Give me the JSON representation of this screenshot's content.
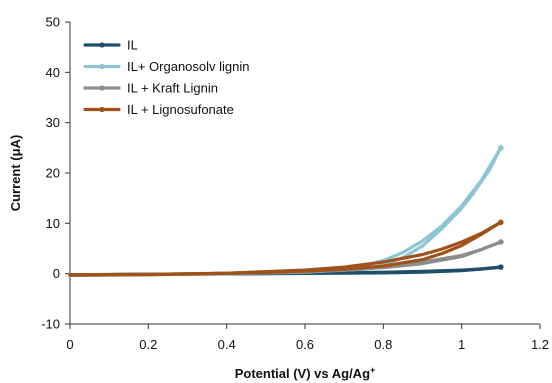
{
  "chart_data": {
    "type": "line",
    "xlabel": "Potential (V) vs Ag/Ag",
    "xlabel_sup": "+",
    "ylabel": "Current (μA)",
    "xlim": [
      0,
      1.2
    ],
    "ylim": [
      -10,
      50
    ],
    "xticks": [
      0,
      0.2,
      0.4,
      0.6,
      0.8,
      1,
      1.2
    ],
    "xtick_labels": [
      "0",
      "0.2",
      "0.4",
      "0.6",
      "0.8",
      "1",
      "1.2"
    ],
    "yticks": [
      -10,
      0,
      10,
      20,
      30,
      40,
      50
    ],
    "ytick_labels": [
      "-10",
      "0",
      "10",
      "20",
      "30",
      "40",
      "50"
    ],
    "grid": false,
    "legend_position": "top-left",
    "series": [
      {
        "name": "IL",
        "color": "#1f4e6b",
        "forward": [
          [
            0,
            -0.2
          ],
          [
            0.2,
            -0.1
          ],
          [
            0.4,
            0.0
          ],
          [
            0.6,
            0.1
          ],
          [
            0.8,
            0.3
          ],
          [
            0.9,
            0.45
          ],
          [
            1.0,
            0.7
          ],
          [
            1.05,
            0.9
          ],
          [
            1.1,
            1.3
          ]
        ],
        "reverse": [
          [
            1.1,
            1.3
          ],
          [
            1.0,
            0.6
          ],
          [
            0.9,
            0.3
          ],
          [
            0.8,
            0.15
          ],
          [
            0.6,
            0.05
          ],
          [
            0.4,
            -0.05
          ],
          [
            0.2,
            -0.15
          ],
          [
            0,
            -0.25
          ]
        ]
      },
      {
        "name": "IL+ Organosolv lignin",
        "color": "#8ec5d3",
        "forward": [
          [
            0,
            -0.3
          ],
          [
            0.2,
            -0.2
          ],
          [
            0.4,
            0.1
          ],
          [
            0.6,
            0.6
          ],
          [
            0.7,
            1.1
          ],
          [
            0.75,
            1.6
          ],
          [
            0.8,
            2.6
          ],
          [
            0.85,
            4.2
          ],
          [
            0.9,
            6.5
          ],
          [
            0.95,
            9.5
          ],
          [
            1.0,
            13.5
          ],
          [
            1.05,
            18.5
          ],
          [
            1.1,
            25.0
          ]
        ],
        "reverse": [
          [
            1.1,
            25.0
          ],
          [
            1.07,
            20.5
          ],
          [
            1.03,
            16.0
          ],
          [
            1.0,
            13.0
          ],
          [
            0.95,
            9.0
          ],
          [
            0.9,
            5.5
          ],
          [
            0.85,
            3.2
          ],
          [
            0.8,
            1.7
          ],
          [
            0.75,
            0.9
          ],
          [
            0.6,
            0.3
          ],
          [
            0.4,
            0.0
          ],
          [
            0.2,
            -0.2
          ],
          [
            0,
            -0.35
          ]
        ]
      },
      {
        "name": "IL + Kraft Lignin",
        "color": "#8c8c8c",
        "forward": [
          [
            0,
            -0.25
          ],
          [
            0.2,
            -0.15
          ],
          [
            0.4,
            0.05
          ],
          [
            0.6,
            0.5
          ],
          [
            0.7,
            0.9
          ],
          [
            0.8,
            1.5
          ],
          [
            0.9,
            2.3
          ],
          [
            1.0,
            3.6
          ],
          [
            1.05,
            4.8
          ],
          [
            1.1,
            6.3
          ]
        ],
        "reverse": [
          [
            1.1,
            6.3
          ],
          [
            1.05,
            4.8
          ],
          [
            1.0,
            3.4
          ],
          [
            0.9,
            2.0
          ],
          [
            0.8,
            1.2
          ],
          [
            0.7,
            0.7
          ],
          [
            0.6,
            0.4
          ],
          [
            0.4,
            0.0
          ],
          [
            0.2,
            -0.2
          ],
          [
            0,
            -0.3
          ]
        ]
      },
      {
        "name": "IL + Lignosufonate",
        "color": "#a0521a",
        "forward": [
          [
            0,
            -0.25
          ],
          [
            0.2,
            -0.15
          ],
          [
            0.4,
            0.1
          ],
          [
            0.6,
            0.7
          ],
          [
            0.7,
            1.3
          ],
          [
            0.8,
            2.3
          ],
          [
            0.9,
            3.8
          ],
          [
            0.95,
            4.9
          ],
          [
            1.0,
            6.3
          ],
          [
            1.05,
            8.0
          ],
          [
            1.1,
            10.2
          ]
        ],
        "reverse": [
          [
            1.1,
            10.2
          ],
          [
            1.05,
            7.8
          ],
          [
            1.0,
            5.6
          ],
          [
            0.95,
            4.0
          ],
          [
            0.9,
            2.8
          ],
          [
            0.8,
            1.5
          ],
          [
            0.7,
            0.9
          ],
          [
            0.6,
            0.5
          ],
          [
            0.4,
            0.05
          ],
          [
            0.2,
            -0.2
          ],
          [
            0,
            -0.3
          ]
        ]
      }
    ]
  }
}
